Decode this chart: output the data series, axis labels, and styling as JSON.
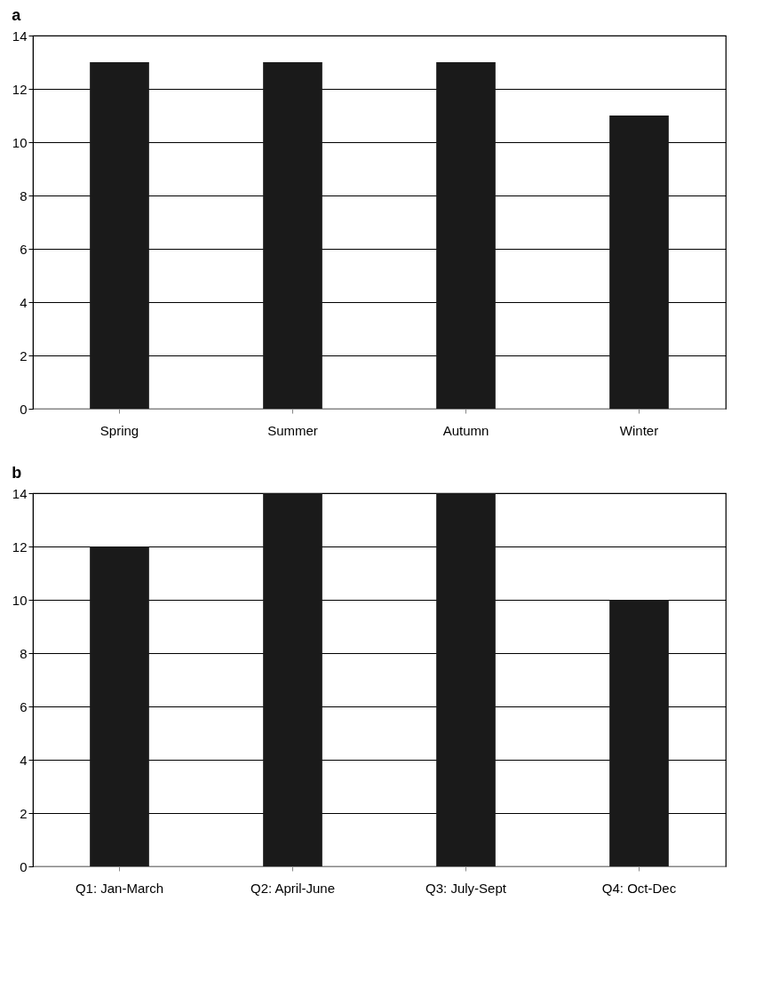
{
  "chart_data": [
    {
      "type": "bar",
      "title": "a",
      "categories": [
        "Spring",
        "Summer",
        "Autumn",
        "Winter"
      ],
      "values": [
        13,
        13,
        13,
        11
      ],
      "color": "#1a1a1a",
      "ylim": [
        0,
        14
      ],
      "yticks": [
        0,
        2,
        4,
        6,
        8,
        10,
        12,
        14
      ],
      "grid": "y"
    },
    {
      "type": "bar",
      "title": "b",
      "categories": [
        "Q1: Jan-March",
        "Q2: April-June",
        "Q3: July-Sept",
        "Q4: Oct-Dec"
      ],
      "values": [
        12,
        14,
        14,
        10
      ],
      "color": "#1a1a1a",
      "ylim": [
        0,
        14
      ],
      "yticks": [
        0,
        2,
        4,
        6,
        8,
        10,
        12,
        14
      ],
      "grid": "y"
    }
  ]
}
